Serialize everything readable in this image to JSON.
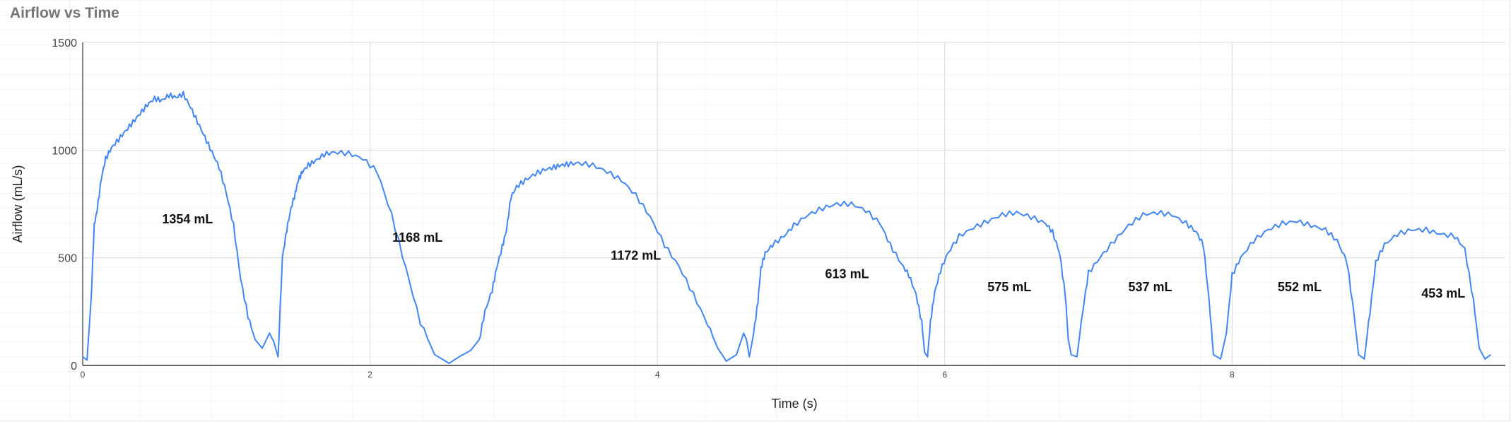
{
  "chart_data": {
    "type": "line",
    "title": "Airflow vs Time",
    "xlabel": "Time (s)",
    "ylabel": "Airflow (mL/s)",
    "xlim": [
      0,
      9.8
    ],
    "ylim": [
      0,
      1500
    ],
    "x_ticks": [
      0,
      2,
      4,
      6,
      8
    ],
    "y_ticks": [
      0,
      500,
      1000,
      1500
    ],
    "x_tick_labels": [
      "0",
      "2",
      "4",
      "6",
      "8"
    ],
    "y_tick_labels": [
      "0",
      "500",
      "1000",
      "1500"
    ],
    "grid": true,
    "legend": "none",
    "colors": {
      "line": "#4285f4",
      "grid": "#d9d9d9",
      "axis": "#333333"
    },
    "series": [
      {
        "x": [
          0,
          0.03,
          0.06,
          0.08,
          0.1,
          0.13,
          0.16,
          0.2,
          0.25,
          0.3,
          0.35,
          0.4,
          0.45,
          0.5,
          0.55,
          0.6,
          0.65,
          0.7,
          0.75,
          0.8,
          0.85,
          0.9,
          0.95,
          1.0,
          1.05,
          1.1,
          1.15,
          1.2,
          1.25,
          1.3,
          1.33,
          1.36,
          1.39,
          1.42,
          1.45,
          1.48,
          1.5,
          1.53,
          1.57,
          1.62,
          1.68,
          1.75,
          1.85,
          1.95,
          2.05,
          2.15,
          2.25,
          2.35,
          2.45,
          2.55,
          2.62,
          2.7,
          2.76,
          2.8,
          2.85,
          2.88,
          2.92,
          2.95,
          2.98,
          3.02,
          3.08,
          3.15,
          3.22,
          3.28,
          3.33,
          3.38,
          3.45,
          3.55,
          3.65,
          3.75,
          3.85,
          3.95,
          4.05,
          4.15,
          4.25,
          4.35,
          4.42,
          4.48,
          4.55,
          4.6,
          4.62,
          4.64,
          4.67,
          4.7,
          4.72,
          4.75,
          4.8,
          4.88,
          4.95,
          5.05,
          5.15,
          5.25,
          5.35,
          5.45,
          5.55,
          5.62,
          5.7,
          5.75,
          5.8,
          5.84,
          5.86,
          5.88,
          5.9,
          5.93,
          5.97,
          6.02,
          6.1,
          6.2,
          6.3,
          6.4,
          6.5,
          6.6,
          6.7,
          6.75,
          6.8,
          6.84,
          6.86,
          6.88,
          6.92,
          6.96,
          7.0,
          7.08,
          7.18,
          7.28,
          7.38,
          7.48,
          7.58,
          7.68,
          7.75,
          7.8,
          7.84,
          7.87,
          7.92,
          7.96,
          8.0,
          8.06,
          8.15,
          8.25,
          8.35,
          8.45,
          8.55,
          8.65,
          8.73,
          8.8,
          8.85,
          8.88,
          8.92,
          8.96,
          9.0,
          9.06,
          9.15,
          9.25,
          9.35,
          9.45,
          9.55,
          9.62,
          9.68,
          9.72,
          9.76,
          9.8
        ],
        "values": [
          40,
          25,
          320,
          650,
          720,
          870,
          960,
          1010,
          1050,
          1090,
          1130,
          1170,
          1210,
          1240,
          1230,
          1255,
          1245,
          1260,
          1200,
          1130,
          1060,
          990,
          920,
          800,
          650,
          400,
          230,
          120,
          80,
          150,
          110,
          40,
          500,
          630,
          730,
          800,
          860,
          900,
          930,
          950,
          980,
          990,
          985,
          960,
          900,
          700,
          450,
          200,
          50,
          10,
          40,
          70,
          120,
          250,
          350,
          450,
          550,
          630,
          780,
          830,
          860,
          890,
          910,
          920,
          930,
          935,
          940,
          930,
          900,
          860,
          790,
          690,
          560,
          460,
          330,
          190,
          80,
          20,
          50,
          150,
          120,
          40,
          150,
          300,
          450,
          520,
          560,
          600,
          650,
          700,
          730,
          750,
          750,
          720,
          660,
          560,
          470,
          420,
          330,
          200,
          60,
          40,
          200,
          340,
          440,
          520,
          600,
          640,
          670,
          700,
          710,
          690,
          660,
          620,
          520,
          320,
          120,
          50,
          40,
          250,
          430,
          500,
          580,
          650,
          700,
          710,
          700,
          660,
          620,
          560,
          300,
          50,
          30,
          150,
          420,
          500,
          580,
          630,
          660,
          670,
          650,
          630,
          580,
          480,
          230,
          50,
          30,
          250,
          480,
          560,
          610,
          630,
          630,
          610,
          600,
          540,
          300,
          80,
          30,
          50
        ]
      }
    ],
    "annotations": [
      {
        "x": 0.73,
        "y": 660,
        "text": "1354 mL"
      },
      {
        "x": 2.33,
        "y": 575,
        "text": "1168 mL"
      },
      {
        "x": 3.85,
        "y": 490,
        "text": "1172 mL"
      },
      {
        "x": 5.32,
        "y": 405,
        "text": "613 mL"
      },
      {
        "x": 6.45,
        "y": 345,
        "text": "575 mL"
      },
      {
        "x": 7.43,
        "y": 345,
        "text": "537 mL"
      },
      {
        "x": 8.47,
        "y": 345,
        "text": "552 mL"
      },
      {
        "x": 9.47,
        "y": 315,
        "text": "453 mL"
      }
    ]
  }
}
